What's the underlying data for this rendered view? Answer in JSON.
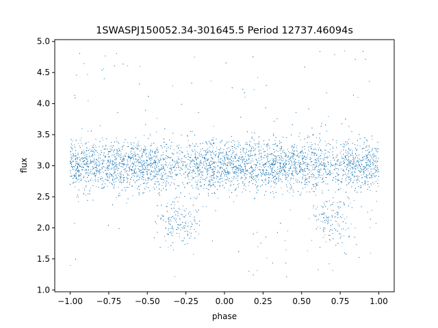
{
  "chart_data": {
    "type": "scatter",
    "title": "1SWASPJ150052.34-301645.5 Period 12737.46094s",
    "xlabel": "phase",
    "ylabel": "flux",
    "xlim": [
      -1.1,
      1.1
    ],
    "ylim": [
      0.97,
      5.03
    ],
    "xticks": [
      -1.0,
      -0.75,
      -0.5,
      -0.25,
      0.0,
      0.25,
      0.5,
      0.75,
      1.0
    ],
    "xtick_labels": [
      "−1.00",
      "−0.75",
      "−0.50",
      "−0.25",
      "0.00",
      "0.25",
      "0.50",
      "0.75",
      "1.00"
    ],
    "yticks": [
      1.0,
      1.5,
      2.0,
      2.5,
      3.0,
      3.5,
      4.0,
      4.5,
      5.0
    ],
    "ytick_labels": [
      "1.0",
      "1.5",
      "2.0",
      "2.5",
      "3.0",
      "3.5",
      "4.0",
      "4.5",
      "5.0"
    ],
    "grid": false,
    "legend": "none",
    "point_color": "#1f77b4",
    "series": [
      {
        "x_range": [
          -1.0,
          1.0
        ],
        "baseline_flux": 3.0,
        "baseline_scatter": 0.2,
        "eclipse_centers": [
          -0.3,
          0.7
        ],
        "eclipse_min_flux": 2.1,
        "flux_min": 1.15,
        "flux_max": 4.85,
        "note_density": "dense"
      }
    ]
  }
}
